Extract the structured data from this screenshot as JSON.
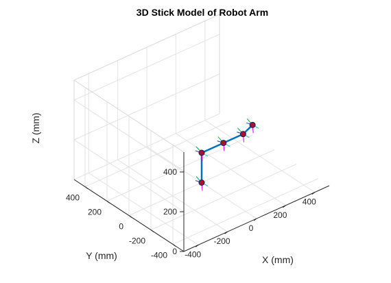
{
  "chart_data": {
    "type": "line3d",
    "title": "3D Stick Model of Robot Arm",
    "xlabel": "X (mm)",
    "ylabel": "Y (mm)",
    "zlabel": "Z (mm)",
    "xlim": [
      -500,
      500
    ],
    "ylim": [
      -500,
      500
    ],
    "zlim": [
      0,
      500
    ],
    "xticks": [
      -400,
      -200,
      0,
      200,
      400
    ],
    "yticks": [
      -400,
      -200,
      0,
      200,
      400
    ],
    "zticks": [
      0,
      200,
      400
    ],
    "grid": true,
    "line_color": "#0072BD",
    "joint_color": "#A2142F",
    "joints": [
      {
        "x": 0,
        "y": 0,
        "z": 0
      },
      {
        "x": 0,
        "y": 0,
        "z": 150
      },
      {
        "x": 150,
        "y": 0,
        "z": 150
      },
      {
        "x": 285,
        "y": 0,
        "z": 150
      },
      {
        "x": 380,
        "y": 40,
        "z": 150
      }
    ]
  }
}
